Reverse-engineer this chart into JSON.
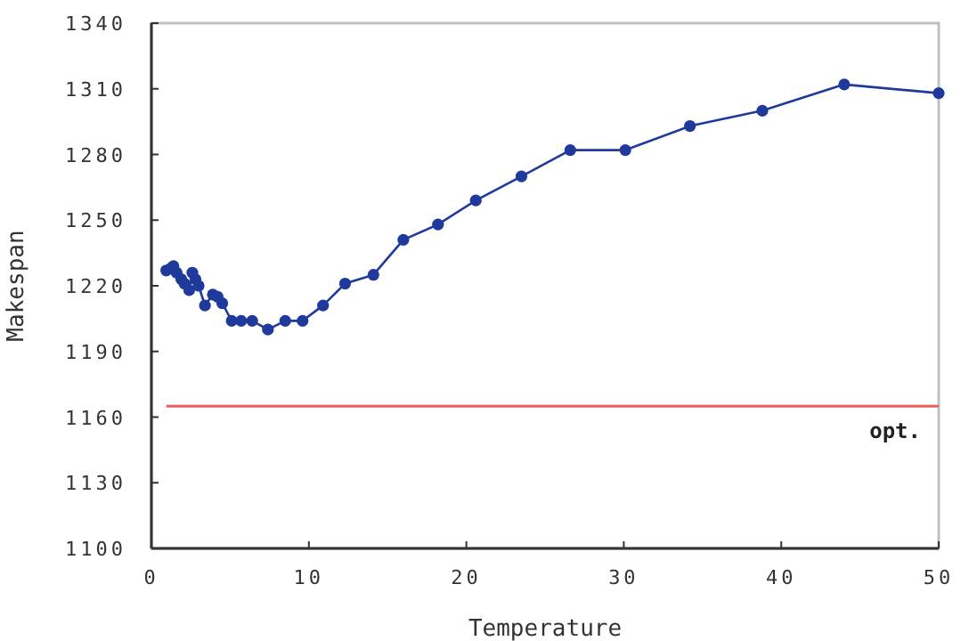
{
  "chart_data": {
    "type": "line",
    "xlabel": "Temperature",
    "ylabel": "Makespan",
    "x": [
      0.94,
      1.24,
      1.4,
      1.6,
      1.9,
      2.1,
      2.4,
      2.6,
      2.8,
      3.0,
      3.4,
      3.9,
      4.2,
      4.5,
      5.1,
      5.7,
      6.4,
      7.4,
      8.5,
      9.6,
      10.9,
      12.3,
      14.1,
      16.0,
      18.2,
      20.6,
      23.5,
      26.6,
      30.1,
      34.2,
      38.8,
      44.0,
      50.0
    ],
    "series": [
      {
        "color": "#1f3a9a",
        "values": [
          1227,
          1228,
          1229,
          1226,
          1223,
          1221,
          1218,
          1226,
          1223,
          1220,
          1211,
          1216,
          1215,
          1212,
          1204,
          1204,
          1204,
          1200,
          1204,
          1204,
          1211,
          1221,
          1225,
          1241,
          1248,
          1259,
          1270,
          1282,
          1282,
          1293,
          1300,
          1312,
          1308
        ]
      }
    ],
    "xlim": [
      0,
      50
    ],
    "xticks": [
      0,
      10,
      20,
      30,
      40,
      50
    ],
    "ylim": [
      1100,
      1340
    ],
    "yticks": [
      1100,
      1130,
      1160,
      1190,
      1220,
      1250,
      1280,
      1310,
      1340
    ],
    "ref_lines": [
      {
        "axis": "y",
        "value": 1165,
        "label": "opt.",
        "color": "#f06060"
      }
    ],
    "marker": "circle",
    "grid": false
  }
}
